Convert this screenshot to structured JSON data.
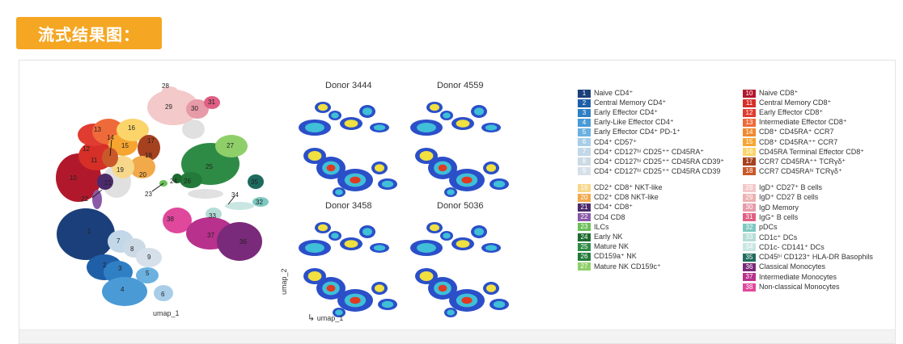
{
  "header": {
    "title": "流式结果图："
  },
  "umap": {
    "axis_label": "umap_1",
    "cluster_numbers": [
      "1",
      "2",
      "3",
      "4",
      "5",
      "6",
      "7",
      "8",
      "9",
      "10",
      "11",
      "12",
      "13",
      "14",
      "15",
      "16",
      "17",
      "18",
      "19",
      "20",
      "21",
      "22",
      "23",
      "24",
      "25",
      "26",
      "27",
      "28",
      "29",
      "30",
      "31",
      "32",
      "33",
      "34",
      "35",
      "36",
      "37",
      "38"
    ]
  },
  "density": {
    "donors": [
      "Donor 3444",
      "Donor 4559",
      "Donor 3458",
      "Donor 5036"
    ],
    "x_label": "umap_1",
    "y_label": "umap_2"
  },
  "legend": {
    "left": [
      {
        "n": "1",
        "label": "Naive CD4⁺",
        "color": "#1b3f7a"
      },
      {
        "n": "2",
        "label": "Central Memory CD4⁺",
        "color": "#1f5fa8"
      },
      {
        "n": "3",
        "label": "Early Effector CD4⁺",
        "color": "#2f7fc4"
      },
      {
        "n": "4",
        "label": "Early-Like Effector CD4⁺",
        "color": "#4a9ad6"
      },
      {
        "n": "5",
        "label": "Early Effector CD4⁺ PD-1⁺",
        "color": "#6bb1e0"
      },
      {
        "n": "6",
        "label": "CD4⁺ CD57⁺",
        "color": "#a8cde8"
      },
      {
        "n": "7",
        "label": "CD4⁺ CD127ʰⁱ CD25⁺⁺ CD45RA⁺",
        "color": "#c2d8e8"
      },
      {
        "n": "8",
        "label": "CD4⁺ CD127ʰⁱ CD25⁺⁺ CD45RA  CD39⁺",
        "color": "#ccdae5"
      },
      {
        "n": "9",
        "label": "CD4⁺ CD127ʰⁱ CD25⁺⁺ CD45RA  CD39",
        "color": "#d6e0ea"
      },
      {
        "n": "19",
        "label": "CD2⁺ CD8⁺ NKT-like",
        "color": "#f7d78a"
      },
      {
        "n": "20",
        "label": "CD2⁺ CD8  NKT-like",
        "color": "#f1a94a"
      },
      {
        "n": "21",
        "label": "CD4⁺ CD8⁺",
        "color": "#4b2a6b"
      },
      {
        "n": "22",
        "label": "CD4  CD8",
        "color": "#8a5aa8"
      },
      {
        "n": "23",
        "label": "ILCs",
        "color": "#6bbf59"
      },
      {
        "n": "24",
        "label": "Early NK",
        "color": "#1d6b2f"
      },
      {
        "n": "25",
        "label": "Mature NK",
        "color": "#2e8b45"
      },
      {
        "n": "26",
        "label": "CD159a⁺ NK",
        "color": "#237a3b"
      },
      {
        "n": "27",
        "label": "Mature NK CD159c⁺",
        "color": "#8fcf6a"
      }
    ],
    "right": [
      {
        "n": "10",
        "label": "Naive CD8⁺",
        "color": "#b2182b"
      },
      {
        "n": "11",
        "label": "Central Memory CD8⁺",
        "color": "#d62f27"
      },
      {
        "n": "12",
        "label": "Early Effector CD8⁺",
        "color": "#e03c31"
      },
      {
        "n": "13",
        "label": "Intermediate Effector CD8⁺",
        "color": "#ef6a3a"
      },
      {
        "n": "14",
        "label": "CD8⁺ CD45RA⁺ CCR7",
        "color": "#f08a2e"
      },
      {
        "n": "15",
        "label": "CD8⁺ CD45RA⁺⁺ CCR7",
        "color": "#f6a531"
      },
      {
        "n": "16",
        "label": "CD45RA Terminal Effector CD8⁺",
        "color": "#fbd46a"
      },
      {
        "n": "17",
        "label": "CCR7  CD45RA⁺⁺ TCRγδ⁺",
        "color": "#a6411f"
      },
      {
        "n": "18",
        "label": "CCR7  CD45RAʰⁱ TCRγδ⁺",
        "color": "#c9582a"
      },
      {
        "n": "28",
        "label": "IgD⁺ CD27⁺ B cells",
        "color": "#f3c9c9"
      },
      {
        "n": "29",
        "label": "IgD⁺ CD27  B cells",
        "color": "#eeb0b0"
      },
      {
        "n": "30",
        "label": "IgD Memory",
        "color": "#e79aa8"
      },
      {
        "n": "31",
        "label": "IgG⁺ B cells",
        "color": "#e05f84"
      },
      {
        "n": "32",
        "label": "pDCs",
        "color": "#7cc8c0"
      },
      {
        "n": "33",
        "label": "CD1c⁺ DCs",
        "color": "#b5ddd8"
      },
      {
        "n": "34",
        "label": "CD1c- CD141⁺ DCs",
        "color": "#c9e6e2"
      },
      {
        "n": "35",
        "label": "CD45ʰⁱ CD123⁺ HLA-DR  Basophils",
        "color": "#1e6b5e"
      },
      {
        "n": "36",
        "label": "Classical Monocytes",
        "color": "#7a2a7a"
      },
      {
        "n": "37",
        "label": "Intermediate Monocytes",
        "color": "#b8318c"
      },
      {
        "n": "38",
        "label": "Non-classical Monocytes",
        "color": "#e0489c"
      }
    ]
  }
}
